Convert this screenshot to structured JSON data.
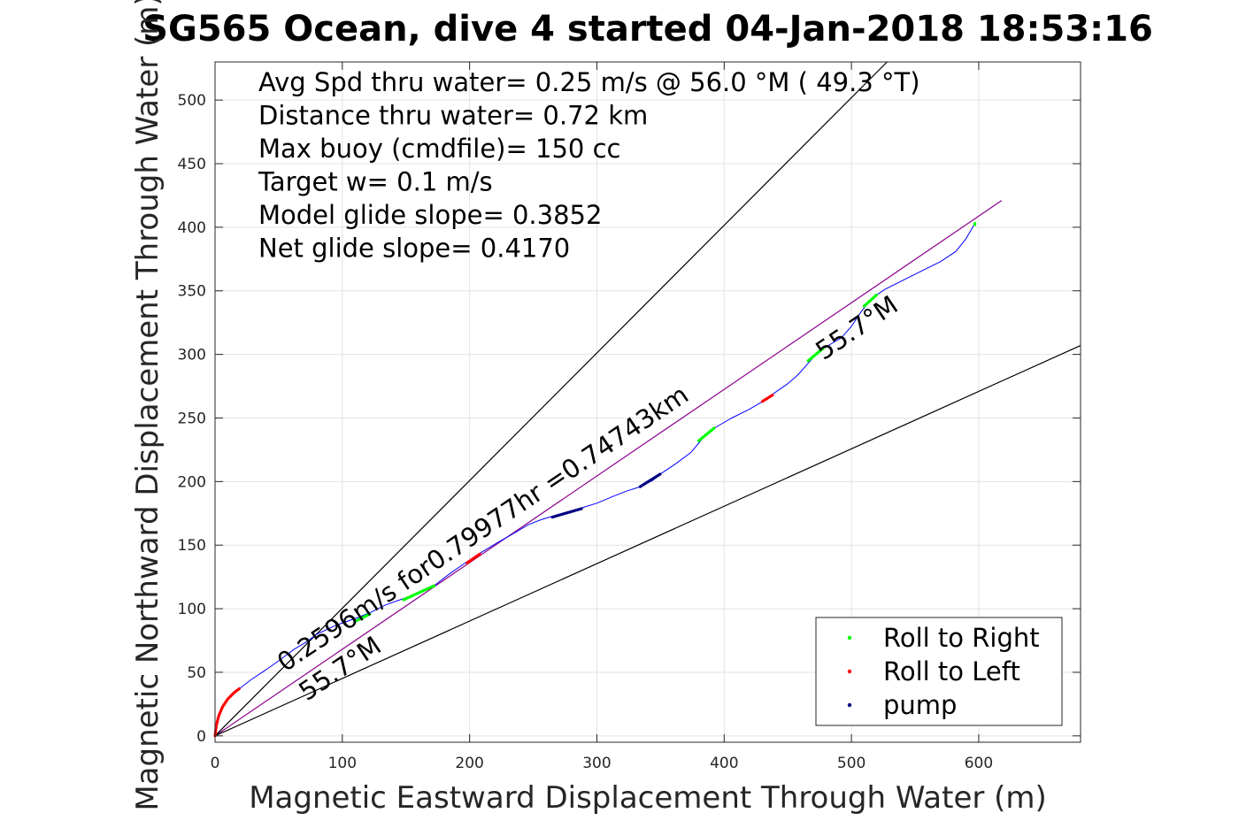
{
  "chart_data": {
    "type": "line",
    "title": "SG565 Ocean, dive 4 started 04-Jan-2018 18:53:16",
    "xlabel": "Magnetic Eastward Displacement Through Water (m)",
    "ylabel": "Magnetic Northward Displacement Through Water (m)",
    "xlim": [
      0,
      680
    ],
    "ylim": [
      -5,
      530
    ],
    "x_ticks": [
      0,
      100,
      200,
      300,
      400,
      500,
      600
    ],
    "y_ticks": [
      0,
      50,
      100,
      150,
      200,
      250,
      300,
      350,
      400,
      450,
      500
    ],
    "grid": true,
    "legend_position": "bottom-right",
    "info_text": [
      "Avg Spd thru water=  0.25 m/s @  56.0 °M ( 49.3 °T)",
      "Distance thru water=  0.72 km",
      "Max buoy (cmdfile)= 150 cc",
      "Target w= 0.1 m/s",
      "Model glide slope= 0.3852",
      "Net glide slope= 0.4170"
    ],
    "annotations": [
      {
        "text": "0.2596m/s for0.79977hr =0.74743km",
        "x": 55,
        "y": 50,
        "angle_deg": 34
      },
      {
        "text": "55.7°M",
        "x": 72,
        "y": 27,
        "angle_deg": 34
      },
      {
        "text": "55.7°M",
        "x": 478,
        "y": 295,
        "angle_deg": 34
      }
    ],
    "reference_lines": [
      {
        "name": "heading line",
        "color": "#8b008b",
        "points": [
          [
            0,
            0
          ],
          [
            618,
            421
          ]
        ]
      },
      {
        "name": "upper bound",
        "color": "#000000",
        "points": [
          [
            0,
            0
          ],
          [
            528,
            530
          ]
        ]
      },
      {
        "name": "lower bound",
        "color": "#000000",
        "points": [
          [
            0,
            0
          ],
          [
            680,
            307
          ]
        ]
      }
    ],
    "track": {
      "color": "#0000ff",
      "points": [
        [
          0,
          0
        ],
        [
          1,
          8
        ],
        [
          3,
          16
        ],
        [
          6,
          23
        ],
        [
          10,
          29
        ],
        [
          15,
          34
        ],
        [
          19,
          37
        ],
        [
          28,
          44
        ],
        [
          40,
          52
        ],
        [
          50,
          59
        ],
        [
          62,
          68
        ],
        [
          72,
          74
        ],
        [
          80,
          80
        ],
        [
          95,
          87
        ],
        [
          112,
          93
        ],
        [
          122,
          97
        ],
        [
          134,
          103
        ],
        [
          148,
          108
        ],
        [
          162,
          113
        ],
        [
          172,
          118
        ],
        [
          185,
          128
        ],
        [
          198,
          137
        ],
        [
          207,
          143
        ],
        [
          222,
          152
        ],
        [
          236,
          160
        ],
        [
          246,
          166
        ],
        [
          256,
          170
        ],
        [
          266,
          173
        ],
        [
          276,
          176
        ],
        [
          287,
          179
        ],
        [
          300,
          183
        ],
        [
          312,
          188
        ],
        [
          322,
          192
        ],
        [
          334,
          196
        ],
        [
          344,
          201
        ],
        [
          350,
          206
        ],
        [
          362,
          214
        ],
        [
          374,
          223
        ],
        [
          384,
          235
        ],
        [
          394,
          243
        ],
        [
          406,
          250
        ],
        [
          420,
          257
        ],
        [
          432,
          264
        ],
        [
          440,
          270
        ],
        [
          450,
          277
        ],
        [
          458,
          284
        ],
        [
          466,
          293
        ],
        [
          474,
          302
        ],
        [
          482,
          307
        ],
        [
          492,
          313
        ],
        [
          500,
          322
        ],
        [
          508,
          334
        ],
        [
          516,
          344
        ],
        [
          526,
          351
        ],
        [
          540,
          358
        ],
        [
          556,
          366
        ],
        [
          570,
          373
        ],
        [
          582,
          381
        ],
        [
          590,
          391
        ],
        [
          597,
          403
        ]
      ]
    },
    "series": [
      {
        "name": "Roll to Right",
        "color": "#00ff00",
        "segments": [
          [
            [
              110,
              90
            ],
            [
              122,
              96
            ]
          ],
          [
            [
              148,
              107
            ],
            [
              172,
              118
            ]
          ],
          [
            [
              380,
              232
            ],
            [
              392,
              242
            ]
          ],
          [
            [
              466,
              295
            ],
            [
              478,
              305
            ]
          ],
          [
            [
              510,
              338
            ],
            [
              520,
              347
            ]
          ],
          [
            [
              597,
              402
            ],
            [
              597,
              403
            ]
          ]
        ]
      },
      {
        "name": "Roll to Left",
        "color": "#ff0000",
        "segments": [
          [
            [
              0,
              0
            ],
            [
              1,
              8
            ],
            [
              3,
              16
            ],
            [
              6,
              23
            ],
            [
              10,
              29
            ],
            [
              15,
              34
            ],
            [
              19,
              37
            ]
          ],
          [
            [
              198,
              136
            ],
            [
              208,
              143
            ]
          ],
          [
            [
              430,
              263
            ],
            [
              438,
              268
            ]
          ]
        ]
      },
      {
        "name": "pump",
        "color": "#000080",
        "segments": [
          [
            [
              265,
              172
            ],
            [
              289,
              179
            ]
          ],
          [
            [
              334,
              196
            ],
            [
              350,
              206
            ]
          ]
        ]
      }
    ]
  }
}
